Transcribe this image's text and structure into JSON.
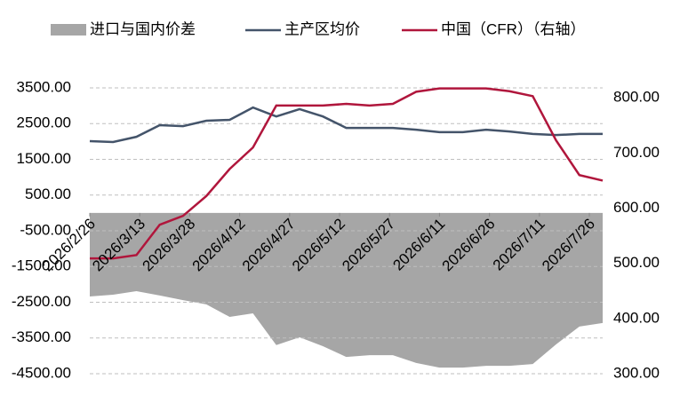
{
  "chart_data": {
    "type": "line",
    "x": [
      "2026/2/26",
      "2026/3/5",
      "2026/3/12",
      "2026/3/19",
      "2026/3/26",
      "2026/4/2",
      "2026/4/9",
      "2026/4/16",
      "2026/4/23",
      "2026/4/30",
      "2026/5/7",
      "2026/5/14",
      "2026/5/21",
      "2026/5/28",
      "2026/6/4",
      "2026/6/11",
      "2026/6/18",
      "2026/6/25",
      "2026/7/2",
      "2026/7/9",
      "2026/7/16",
      "2026/7/23",
      "2026/7/30"
    ],
    "xlim": [
      "2026/2/26",
      "2026/7/30"
    ],
    "xticks": [
      "2026/2/26",
      "2026/3/13",
      "2026/3/28",
      "2026/4/12",
      "2026/4/27",
      "2026/5/12",
      "2026/5/27",
      "2026/6/11",
      "2026/6/26",
      "2026/7/11",
      "2026/7/26"
    ],
    "ylim": [
      -4500,
      3500
    ],
    "yticks": [
      {
        "value": -4500,
        "label": "-4500.00"
      },
      {
        "value": -3500,
        "label": "-3500.00"
      },
      {
        "value": -2500,
        "label": "-2500.00"
      },
      {
        "value": -1500,
        "label": "-1500.00"
      },
      {
        "value": -500,
        "label": "-500.00"
      },
      {
        "value": 500,
        "label": "500.00"
      },
      {
        "value": 1500,
        "label": "1500.00"
      },
      {
        "value": 2500,
        "label": "2500.00"
      },
      {
        "value": 3500,
        "label": "3500.00"
      }
    ],
    "y2lim": [
      300,
      818
    ],
    "y2ticks": [
      {
        "value": 300,
        "label": "300.00"
      },
      {
        "value": 400,
        "label": "400.00"
      },
      {
        "value": 500,
        "label": "500.00"
      },
      {
        "value": 600,
        "label": "600.00"
      },
      {
        "value": 700,
        "label": "700.00"
      },
      {
        "value": 800,
        "label": "800.00"
      }
    ],
    "grid": true,
    "legend": "top",
    "series": [
      {
        "name": "进口与国内价差",
        "type": "area",
        "color": "#a6a6a6",
        "values": [
          -2340,
          -2290,
          -2190,
          -2310,
          -2440,
          -2560,
          -2910,
          -2810,
          -3700,
          -3480,
          -3730,
          -4030,
          -3980,
          -3980,
          -4200,
          -4330,
          -4330,
          -4280,
          -4280,
          -4230,
          -3680,
          -3180,
          -3080
        ]
      },
      {
        "name": "主产区均价",
        "type": "line",
        "color": "#44546a",
        "values": [
          2010,
          1985,
          2130,
          2455,
          2430,
          2580,
          2605,
          2950,
          2700,
          2905,
          2700,
          2380,
          2380,
          2380,
          2330,
          2260,
          2260,
          2330,
          2280,
          2210,
          2180,
          2210,
          2210
        ]
      },
      {
        "name": "中国（CFR）（右轴）",
        "type": "line",
        "color": "#b0163c",
        "axis": "y2",
        "values": [
          509,
          509,
          515,
          570,
          586,
          622,
          671,
          710,
          786,
          786,
          786,
          789,
          786,
          789,
          811,
          817,
          817,
          817,
          812,
          803,
          723,
          660,
          650
        ]
      }
    ]
  }
}
